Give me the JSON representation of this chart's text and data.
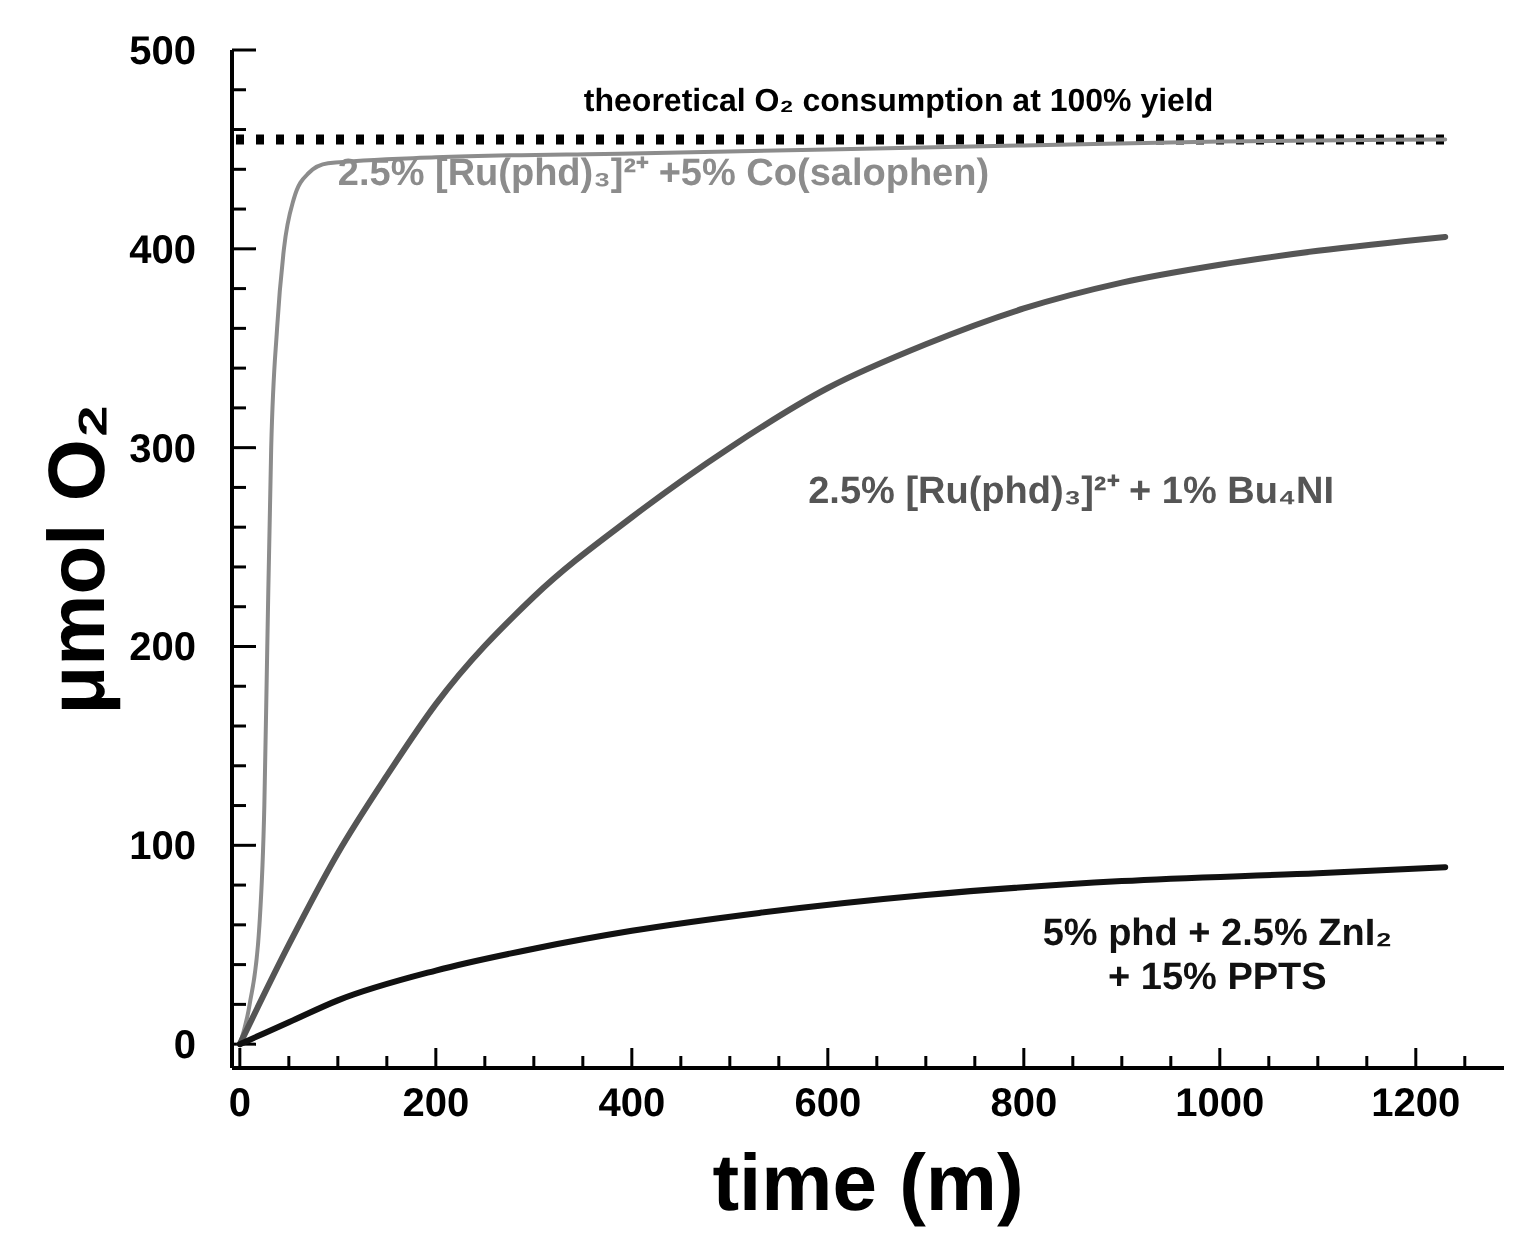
{
  "chart_data": {
    "type": "line",
    "xlabel": "time (m)",
    "ylabel": "μmol O₂",
    "xlim": [
      -8,
      1290
    ],
    "ylim": [
      -12,
      500
    ],
    "xticks": [
      0,
      {
        "value": 50,
        "label": null
      },
      {
        "value": 100,
        "label": null
      },
      {
        "value": 150,
        "label": null
      },
      200,
      {
        "value": 250,
        "label": null
      },
      {
        "value": 300,
        "label": null
      },
      {
        "value": 350,
        "label": null
      },
      400,
      {
        "value": 450,
        "label": null
      },
      {
        "value": 500,
        "label": null
      },
      {
        "value": 550,
        "label": null
      },
      600,
      {
        "value": 650,
        "label": null
      },
      {
        "value": 700,
        "label": null
      },
      {
        "value": 750,
        "label": null
      },
      800,
      {
        "value": 850,
        "label": null
      },
      {
        "value": 900,
        "label": null
      },
      {
        "value": 950,
        "label": null
      },
      1000,
      {
        "value": 1050,
        "label": null
      },
      {
        "value": 1100,
        "label": null
      },
      {
        "value": 1150,
        "label": null
      },
      1200,
      {
        "value": 1250,
        "label": null
      }
    ],
    "yticks": [
      0,
      {
        "value": 20,
        "label": null
      },
      {
        "value": 40,
        "label": null
      },
      {
        "value": 60,
        "label": null
      },
      {
        "value": 80,
        "label": null
      },
      100,
      {
        "value": 120,
        "label": null
      },
      {
        "value": 140,
        "label": null
      },
      {
        "value": 160,
        "label": null
      },
      {
        "value": 180,
        "label": null
      },
      200,
      {
        "value": 220,
        "label": null
      },
      {
        "value": 240,
        "label": null
      },
      {
        "value": 260,
        "label": null
      },
      {
        "value": 280,
        "label": null
      },
      300,
      {
        "value": 320,
        "label": null
      },
      {
        "value": 340,
        "label": null
      },
      {
        "value": 360,
        "label": null
      },
      {
        "value": 380,
        "label": null
      },
      400,
      {
        "value": 420,
        "label": null
      },
      {
        "value": 440,
        "label": null
      },
      {
        "value": 460,
        "label": null
      },
      {
        "value": 480,
        "label": null
      },
      500
    ],
    "grid": false,
    "marker": "none",
    "line_style": "solid",
    "ref_lines": [
      {
        "axis": "y",
        "value": 455,
        "label": "theoretical O₂ consumption at 100% yield",
        "color": "#000000",
        "line_style": "dotted"
      }
    ],
    "series": [
      {
        "name": "2.5% [Ru(phd)₃]²⁺ +5% Co(salophen)",
        "color": "#8c8c8c",
        "x": [
          0,
          10,
          20,
          25,
          28,
          32,
          38,
          45,
          55,
          70,
          90,
          200,
          400,
          600,
          800,
          1000,
          1230
        ],
        "values": [
          0,
          20,
          60,
          120,
          200,
          300,
          360,
          400,
          425,
          438,
          443,
          446,
          448,
          450,
          452,
          454,
          455
        ]
      },
      {
        "name": "2.5% [Ru(phd)₃]²⁺ + 1% Bu₄NI",
        "color": "#555555",
        "x": [
          0,
          50,
          100,
          150,
          200,
          300,
          400,
          500,
          600,
          700,
          800,
          900,
          1000,
          1100,
          1230
        ],
        "values": [
          0,
          50,
          96,
          135,
          171,
          225,
          265,
          300,
          330,
          352,
          370,
          383,
          392,
          399,
          406
        ]
      },
      {
        "name": "5% phd + 2.5% ZnI₂ + 15% PPTS",
        "color": "#111111",
        "x": [
          0,
          50,
          100,
          200,
          300,
          400,
          530,
          700,
          900,
          1100,
          1230
        ],
        "values": [
          0,
          11,
          22,
          37,
          48,
          57,
          66,
          75,
          82,
          86,
          89
        ]
      }
    ]
  }
}
